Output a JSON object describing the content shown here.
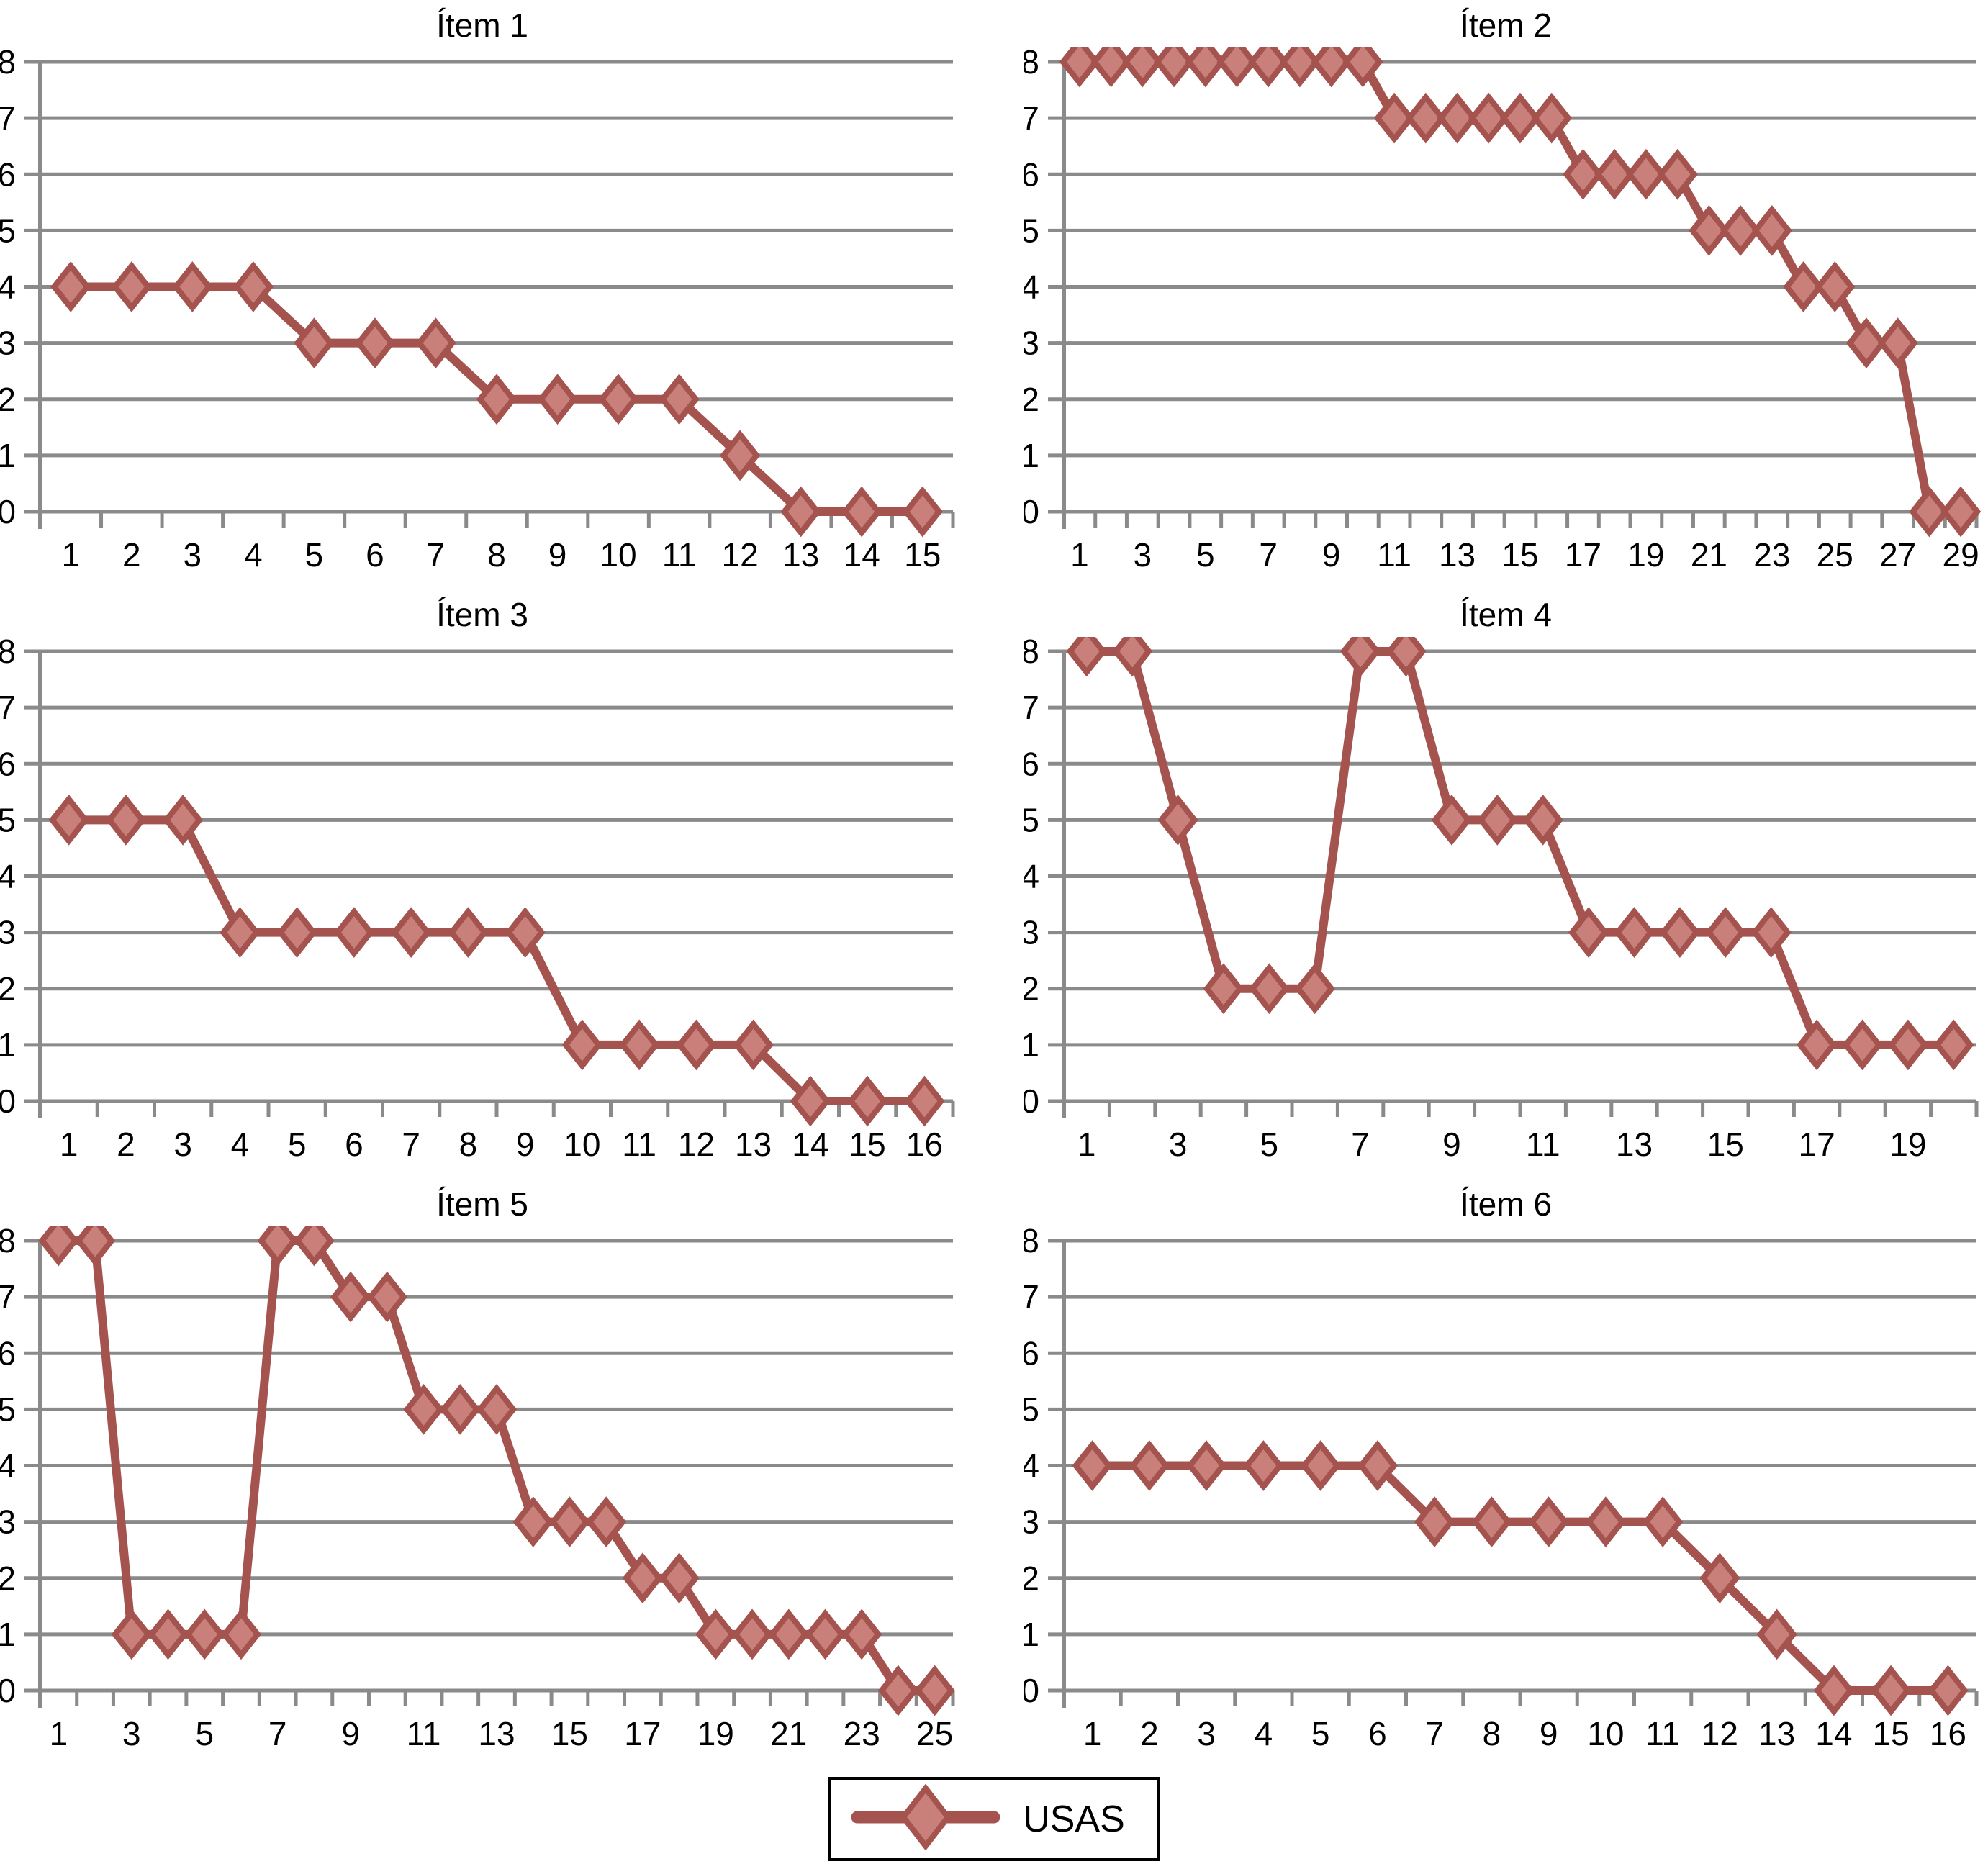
{
  "legend": {
    "label": "USAS",
    "position": "bottom-center"
  },
  "colors": {
    "series_line": "#a5534e",
    "series_fill": "#c9807a",
    "grid": "#8a8a8a",
    "text": "#000000",
    "legend_border": "#000000",
    "background": "#ffffff"
  },
  "chart_data": [
    {
      "type": "line",
      "title": "Ítem 1",
      "marker": "diamond",
      "grid": true,
      "xlabel": "",
      "ylabel": "",
      "ylim": [
        0,
        8
      ],
      "y_ticks": [
        0,
        1,
        2,
        3,
        4,
        5,
        6,
        7,
        8
      ],
      "x_label_every": 1,
      "x": [
        1,
        2,
        3,
        4,
        5,
        6,
        7,
        8,
        9,
        10,
        11,
        12,
        13,
        14,
        15
      ],
      "series": [
        {
          "name": "USAS",
          "values": [
            4,
            4,
            4,
            4,
            3,
            3,
            3,
            2,
            2,
            2,
            2,
            1,
            0,
            0,
            0
          ]
        }
      ]
    },
    {
      "type": "line",
      "title": "Ítem 2",
      "marker": "diamond",
      "grid": true,
      "xlabel": "",
      "ylabel": "",
      "ylim": [
        0,
        8
      ],
      "y_ticks": [
        0,
        1,
        2,
        3,
        4,
        5,
        6,
        7,
        8
      ],
      "x_label_every": 2,
      "x": [
        1,
        2,
        3,
        4,
        5,
        6,
        7,
        8,
        9,
        10,
        11,
        12,
        13,
        14,
        15,
        16,
        17,
        18,
        19,
        20,
        21,
        22,
        23,
        24,
        25,
        26,
        27,
        28,
        29
      ],
      "series": [
        {
          "name": "USAS",
          "values": [
            8,
            8,
            8,
            8,
            8,
            8,
            8,
            8,
            8,
            8,
            7,
            7,
            7,
            7,
            7,
            7,
            6,
            6,
            6,
            6,
            5,
            5,
            5,
            4,
            4,
            3,
            3,
            0,
            0
          ]
        }
      ]
    },
    {
      "type": "line",
      "title": "Ítem 3",
      "marker": "diamond",
      "grid": true,
      "xlabel": "",
      "ylabel": "",
      "ylim": [
        0,
        8
      ],
      "y_ticks": [
        0,
        1,
        2,
        3,
        4,
        5,
        6,
        7,
        8
      ],
      "x_label_every": 1,
      "x": [
        1,
        2,
        3,
        4,
        5,
        6,
        7,
        8,
        9,
        10,
        11,
        12,
        13,
        14,
        15,
        16
      ],
      "series": [
        {
          "name": "USAS",
          "values": [
            5,
            5,
            5,
            3,
            3,
            3,
            3,
            3,
            3,
            1,
            1,
            1,
            1,
            0,
            0,
            0
          ]
        }
      ]
    },
    {
      "type": "line",
      "title": "Ítem 4",
      "marker": "diamond",
      "grid": true,
      "xlabel": "",
      "ylabel": "",
      "ylim": [
        0,
        8
      ],
      "y_ticks": [
        0,
        1,
        2,
        3,
        4,
        5,
        6,
        7,
        8
      ],
      "x_label_every": 2,
      "x": [
        1,
        2,
        3,
        4,
        5,
        6,
        7,
        8,
        9,
        10,
        11,
        12,
        13,
        14,
        15,
        16,
        17,
        18,
        19,
        20
      ],
      "series": [
        {
          "name": "USAS",
          "values": [
            8,
            8,
            5,
            2,
            2,
            2,
            8,
            8,
            5,
            5,
            5,
            3,
            3,
            3,
            3,
            3,
            1,
            1,
            1,
            1
          ]
        }
      ]
    },
    {
      "type": "line",
      "title": "Ítem 5",
      "marker": "diamond",
      "grid": true,
      "xlabel": "",
      "ylabel": "",
      "ylim": [
        0,
        8
      ],
      "y_ticks": [
        0,
        1,
        2,
        3,
        4,
        5,
        6,
        7,
        8
      ],
      "x_label_every": 2,
      "x": [
        1,
        2,
        3,
        4,
        5,
        6,
        7,
        8,
        9,
        10,
        11,
        12,
        13,
        14,
        15,
        16,
        17,
        18,
        19,
        20,
        21,
        22,
        23,
        24,
        25
      ],
      "series": [
        {
          "name": "USAS",
          "values": [
            8,
            8,
            1,
            1,
            1,
            1,
            8,
            8,
            7,
            7,
            5,
            5,
            5,
            3,
            3,
            3,
            2,
            2,
            1,
            1,
            1,
            1,
            1,
            0,
            0
          ]
        }
      ]
    },
    {
      "type": "line",
      "title": "Ítem 6",
      "marker": "diamond",
      "grid": true,
      "xlabel": "",
      "ylabel": "",
      "ylim": [
        0,
        8
      ],
      "y_ticks": [
        0,
        1,
        2,
        3,
        4,
        5,
        6,
        7,
        8
      ],
      "x_label_every": 1,
      "x": [
        1,
        2,
        3,
        4,
        5,
        6,
        7,
        8,
        9,
        10,
        11,
        12,
        13,
        14,
        15,
        16
      ],
      "series": [
        {
          "name": "USAS",
          "values": [
            4,
            4,
            4,
            4,
            4,
            4,
            3,
            3,
            3,
            3,
            3,
            2,
            1,
            0,
            0,
            0
          ]
        }
      ]
    }
  ]
}
